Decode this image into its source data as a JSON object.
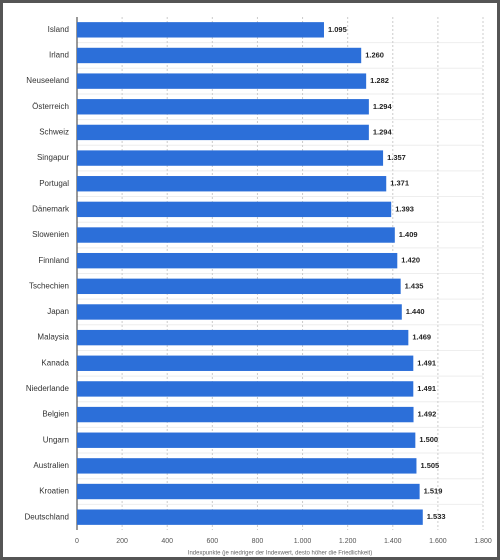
{
  "chart_data": {
    "type": "barh",
    "x_label": "Indexpunkte (je niedriger der Indexwert, desto höher die Friedlichkeit)",
    "categories": [
      "Island",
      "Irland",
      "Neuseeland",
      "Österreich",
      "Schweiz",
      "Singapur",
      "Portugal",
      "Dänemark",
      "Slowenien",
      "Finnland",
      "Tschechien",
      "Japan",
      "Malaysia",
      "Kanada",
      "Niederlande",
      "Belgien",
      "Ungarn",
      "Australien",
      "Kroatien",
      "Deutschland"
    ],
    "values": [
      1095,
      1260,
      1282,
      1294,
      1294,
      1357,
      1371,
      1393,
      1409,
      1420,
      1435,
      1440,
      1469,
      1491,
      1491,
      1492,
      1500,
      1505,
      1519,
      1533
    ],
    "value_labels": [
      "1.095",
      "1.260",
      "1.282",
      "1.294",
      "1.294",
      "1.357",
      "1.371",
      "1.393",
      "1.409",
      "1.420",
      "1.435",
      "1.440",
      "1.469",
      "1.491",
      "1.491",
      "1.492",
      "1.500",
      "1.505",
      "1.519",
      "1.533"
    ],
    "color": "#2c6fd9",
    "xlim": [
      0,
      1800
    ],
    "xticks": [
      0,
      200,
      400,
      600,
      800,
      {
        "value": 1000,
        "label": "1.000"
      },
      {
        "value": 1200,
        "label": "1.200"
      },
      {
        "value": 1400,
        "label": "1.400"
      },
      {
        "value": 1600,
        "label": "1.600"
      },
      {
        "value": 1800,
        "label": "1.800"
      }
    ],
    "grid": true
  }
}
